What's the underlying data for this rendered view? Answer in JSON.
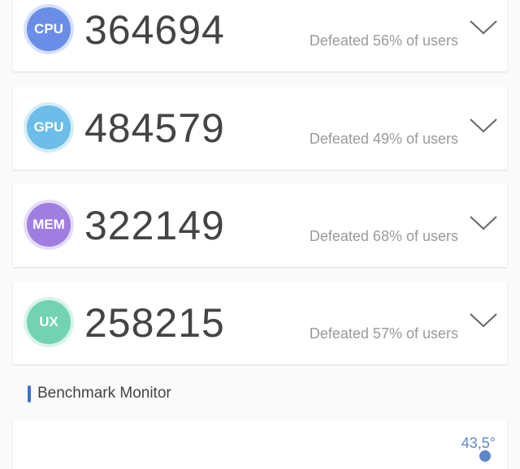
{
  "scores": [
    {
      "label": "CPU",
      "score": "364694",
      "defeated": "Defeated 56% of users",
      "color": "#6a8ee8",
      "halo": "#d6e1fa"
    },
    {
      "label": "GPU",
      "score": "484579",
      "defeated": "Defeated 49% of users",
      "color": "#6cbde8",
      "halo": "#d3ecf9"
    },
    {
      "label": "MEM",
      "score": "322149",
      "defeated": "Defeated 68% of users",
      "color": "#a07ee0",
      "halo": "#e6dcf7"
    },
    {
      "label": "UX",
      "score": "258215",
      "defeated": "Defeated 57% of users",
      "color": "#72d2b2",
      "halo": "#d6f3ea"
    }
  ],
  "monitor": {
    "title": "Benchmark Monitor",
    "temperature": "43,5°",
    "accent": "#3f6fd8"
  }
}
